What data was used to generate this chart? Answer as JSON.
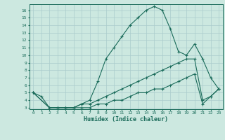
{
  "xlabel": "Humidex (Indice chaleur)",
  "bg_color": "#cce8e0",
  "grid_color": "#b0d8d0",
  "line_color": "#1a6b5a",
  "xlim": [
    -0.5,
    23.5
  ],
  "ylim": [
    2.8,
    16.8
  ],
  "xticks": [
    0,
    1,
    2,
    3,
    4,
    5,
    6,
    7,
    8,
    9,
    10,
    11,
    12,
    13,
    14,
    15,
    16,
    17,
    18,
    19,
    20,
    21,
    22,
    23
  ],
  "yticks": [
    3,
    4,
    5,
    6,
    7,
    8,
    9,
    10,
    11,
    12,
    13,
    14,
    15,
    16
  ],
  "series": [
    {
      "x": [
        0,
        1,
        2,
        3,
        4,
        5,
        6,
        7,
        8,
        9,
        10,
        11,
        12,
        13,
        14,
        15,
        16,
        17,
        18,
        19,
        20,
        21,
        22,
        23
      ],
      "y": [
        5,
        4.5,
        3,
        3,
        3,
        3,
        3.5,
        4,
        6.5,
        9.5,
        11,
        12.5,
        14,
        15,
        16,
        16.5,
        16,
        13.5,
        10.5,
        10,
        11.5,
        9.5,
        7,
        5.5
      ]
    },
    {
      "x": [
        0,
        2,
        3,
        4,
        5,
        6,
        7,
        8,
        9,
        10,
        11,
        12,
        13,
        14,
        15,
        16,
        17,
        18,
        19,
        20,
        21,
        22,
        23
      ],
      "y": [
        5,
        3,
        3,
        3,
        3,
        3.5,
        3.5,
        4,
        4.5,
        5,
        5.5,
        6,
        6.5,
        7,
        7.5,
        8,
        8.5,
        9,
        9.5,
        9.5,
        4,
        4.5,
        5.5
      ]
    },
    {
      "x": [
        0,
        2,
        3,
        4,
        5,
        6,
        7,
        8,
        9,
        10,
        11,
        12,
        13,
        14,
        15,
        16,
        17,
        18,
        19,
        20,
        21,
        22,
        23
      ],
      "y": [
        5,
        3,
        3,
        3,
        3,
        3,
        3,
        3.5,
        3.5,
        4,
        4,
        4.5,
        5,
        5,
        5.5,
        5.5,
        6,
        6.5,
        7,
        7.5,
        3.5,
        4.5,
        5.5
      ]
    }
  ]
}
